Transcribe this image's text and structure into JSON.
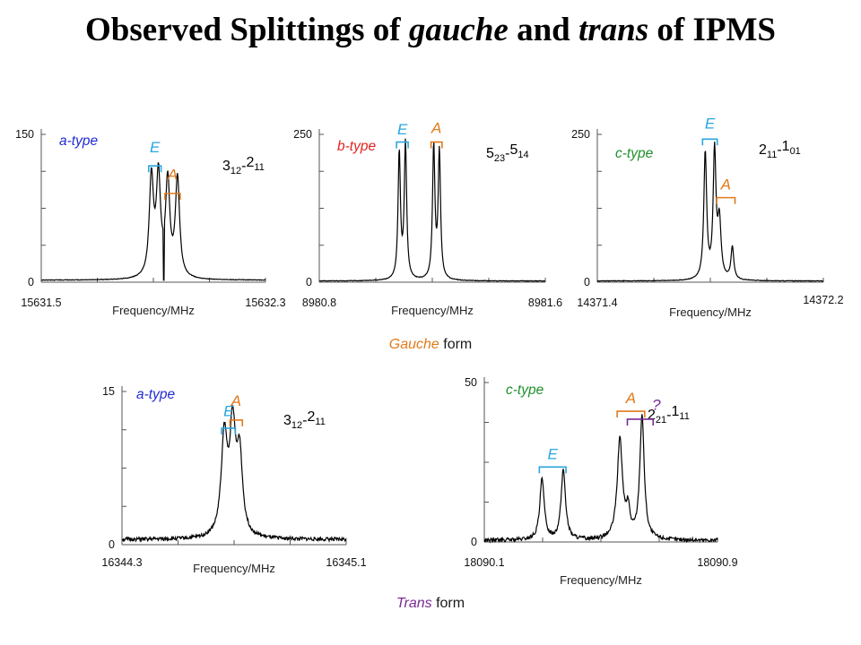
{
  "title": {
    "prefix": "Observed Splittings of ",
    "gauche": "gauche",
    "middle": " and ",
    "trans": "trans",
    "suffix": " of IPMS"
  },
  "forms": {
    "gauche": {
      "italic": "Gauche",
      "rest": " form"
    },
    "trans": {
      "italic": "Trans",
      "rest": " form"
    }
  },
  "colors": {
    "a_type": "#1f2bd1",
    "b_type": "#e0221f",
    "c_type": "#1f8f2b",
    "E": "#2aa6df",
    "A": "#e07a1c",
    "unknown": "#7a2a93"
  },
  "chart_data": [
    {
      "id": "g1",
      "type": "line",
      "form": "gauche",
      "xlabel": "Frequency/MHz",
      "xlim": [
        15631.5,
        15632.3
      ],
      "ylim": [
        0,
        150
      ],
      "xtick_labels": [
        "15631.5",
        "15632.3"
      ],
      "ytick_labels": [
        "0",
        "150"
      ],
      "band_type": "a-type",
      "band_color": "#1f2bd1",
      "transition": {
        "j1": "3",
        "s1": "12",
        "j2": "2",
        "s2": "11"
      },
      "baseline": 2,
      "peaks": [
        {
          "x": 15631.893,
          "height": 100,
          "width": 0.009
        },
        {
          "x": 15631.918,
          "height": 100,
          "width": 0.009
        },
        {
          "x": 15631.951,
          "height": 96,
          "width": 0.009
        },
        {
          "x": 15631.986,
          "height": 100,
          "width": 0.009
        }
      ],
      "dip": {
        "x": 15631.937,
        "value": 2
      },
      "markers": [
        {
          "label": "E",
          "color": "#2aa6df",
          "x1": 15631.893,
          "x2": 15631.918,
          "y": 118,
          "label_y": 132
        },
        {
          "label": "A",
          "color": "#e07a1c",
          "x1": 15631.951,
          "x2": 15631.986,
          "y": 90,
          "label_y": 104
        }
      ]
    },
    {
      "id": "g2",
      "type": "line",
      "form": "gauche",
      "xlabel": "Frequency/MHz",
      "xlim": [
        8980.8,
        8981.6
      ],
      "ylim": [
        0,
        250
      ],
      "xtick_labels": [
        "8980.8",
        "8981.6"
      ],
      "ytick_labels": [
        "0",
        "250"
      ],
      "band_type": "b-type",
      "band_color": "#e0221f",
      "transition": {
        "j1": "5",
        "s1": "23",
        "j2": "5",
        "s2": "14"
      },
      "baseline": 2,
      "peaks": [
        {
          "x": 8981.083,
          "height": 215,
          "width": 0.005
        },
        {
          "x": 8981.105,
          "height": 230,
          "width": 0.005
        },
        {
          "x": 8981.205,
          "height": 225,
          "width": 0.005
        },
        {
          "x": 8981.225,
          "height": 215,
          "width": 0.005
        }
      ],
      "markers": [
        {
          "label": "E",
          "color": "#2aa6df",
          "x1": 8981.083,
          "x2": 8981.105,
          "y": 237,
          "label_y": 250
        },
        {
          "label": "A",
          "color": "#e07a1c",
          "x1": 8981.205,
          "x2": 8981.225,
          "y": 237,
          "label_y": 252
        }
      ]
    },
    {
      "id": "g3",
      "type": "line",
      "form": "gauche",
      "xlabel": "Frequency/MHz",
      "xlim": [
        14371.4,
        14372.2
      ],
      "ylim": [
        0,
        250
      ],
      "xtick_labels": [
        "14371.4",
        "14372.2"
      ],
      "ytick_labels": [
        "0",
        "250"
      ],
      "band_type": "c-type",
      "band_color": "#1f8f2b",
      "transition": {
        "j1": "2",
        "s1": "11",
        "j2": "1",
        "s2": "01"
      },
      "baseline": 2,
      "peaks": [
        {
          "x": 14371.782,
          "height": 215,
          "width": 0.006
        },
        {
          "x": 14371.815,
          "height": 215,
          "width": 0.006
        },
        {
          "x": 14371.832,
          "height": 95,
          "width": 0.007
        },
        {
          "x": 14371.878,
          "height": 55,
          "width": 0.006
        }
      ],
      "markers": [
        {
          "label": "E",
          "color": "#2aa6df",
          "x1": 14371.782,
          "x2": 14371.815,
          "y": 242,
          "label_y": 260
        },
        {
          "label": "A",
          "color": "#e07a1c",
          "x1": 14371.832,
          "x2": 14371.878,
          "y": 143,
          "label_y": 157
        }
      ]
    },
    {
      "id": "t1",
      "type": "line",
      "form": "trans",
      "xlabel": "Frequency/MHz",
      "xlim": [
        16344.3,
        16345.1
      ],
      "ylim": [
        0,
        15
      ],
      "xtick_labels": [
        "16344.3",
        "16345.1"
      ],
      "ytick_labels": [
        "0",
        "15"
      ],
      "band_type": "a-type",
      "band_color": "#1f2bd1",
      "transition": {
        "j1": "3",
        "s1": "12",
        "j2": "2",
        "s2": "11"
      },
      "baseline": 0.5,
      "peaks": [
        {
          "x": 16344.665,
          "height": 9.5,
          "width": 0.013
        },
        {
          "x": 16344.695,
          "height": 10.2,
          "width": 0.013
        },
        {
          "x": 16344.72,
          "height": 7.5,
          "width": 0.012
        }
      ],
      "markers": [
        {
          "label": "E",
          "color": "#2aa6df",
          "x1": 16344.665,
          "x2": 16344.695,
          "y": 11.4,
          "label_y": 12.6
        },
        {
          "label": "A",
          "color": "#e07a1c",
          "x1": 16344.695,
          "x2": 16344.72,
          "y": 12.2,
          "label_y": 13.6
        }
      ]
    },
    {
      "id": "t2",
      "type": "line",
      "form": "trans",
      "xlabel": "Frequency/MHz",
      "xlim": [
        18090.1,
        18090.9
      ],
      "ylim": [
        0,
        50
      ],
      "xtick_labels": [
        "18090.1",
        "18090.9"
      ],
      "ytick_labels": [
        "0",
        "50"
      ],
      "band_type": "c-type",
      "band_color": "#1f8f2b",
      "transition": {
        "j1": "2",
        "s1": "21",
        "j2": "1",
        "s2": "11"
      },
      "baseline": 0.5,
      "peaks": [
        {
          "x": 18090.298,
          "height": 19,
          "width": 0.009
        },
        {
          "x": 18090.371,
          "height": 22,
          "width": 0.009
        },
        {
          "x": 18090.565,
          "height": 31,
          "width": 0.011
        },
        {
          "x": 18090.593,
          "height": 8,
          "width": 0.008
        },
        {
          "x": 18090.641,
          "height": 39,
          "width": 0.009
        }
      ],
      "markers": [
        {
          "label": "E",
          "color": "#2aa6df",
          "x1": 18090.298,
          "x2": 18090.371,
          "y": 23.5,
          "label_y": 26
        },
        {
          "label": "A",
          "color": "#e07a1c",
          "x1": 18090.565,
          "x2": 18090.641,
          "y": 41,
          "label_y": 43.5
        },
        {
          "label": "?",
          "color": "#7a2a93",
          "x1": 18090.6,
          "x2": 18090.67,
          "y": 38.5,
          "label_y": 41.5
        }
      ]
    }
  ]
}
